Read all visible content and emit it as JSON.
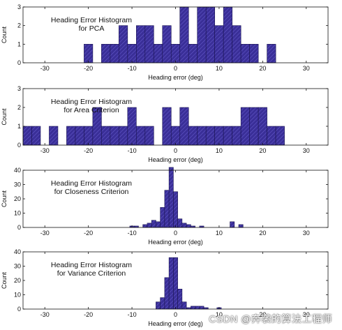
{
  "colors": {
    "bar_fill": "#3a2f98",
    "bar_stroke": "#1a1450",
    "axis": "#111111"
  },
  "watermark": "CSDN @奔袭的算法工程师",
  "chart_data": [
    {
      "type": "bar",
      "title": "Heading Error Histogram\nfor PCA",
      "xlabel": "Heading error (deg)",
      "ylabel": "Count",
      "xlim": [
        -35,
        35
      ],
      "ylim": [
        0,
        3
      ],
      "xticks": [
        -30,
        -20,
        -10,
        0,
        10,
        20,
        30
      ],
      "yticks": [
        0,
        1,
        2,
        3
      ],
      "bin_width": 2,
      "x": [
        -20,
        -18,
        -16,
        -14,
        -12,
        -10,
        -8,
        -6,
        -4,
        -2,
        0,
        2,
        4,
        6,
        8,
        10,
        12,
        14,
        16,
        18,
        20,
        22
      ],
      "values": [
        1,
        0,
        1,
        1,
        2,
        1,
        2,
        2,
        1,
        2,
        1,
        3,
        1,
        3,
        3,
        2,
        3,
        2,
        1,
        1,
        0,
        1
      ]
    },
    {
      "type": "bar",
      "title": "Heading Error Histogram\nfor Area Criterion",
      "xlabel": "Heading error (deg)",
      "ylabel": "Count",
      "xlim": [
        -35,
        35
      ],
      "ylim": [
        0,
        3
      ],
      "xticks": [
        -30,
        -20,
        -10,
        0,
        10,
        20,
        30
      ],
      "yticks": [
        0,
        1,
        2,
        3
      ],
      "bin_width": 2,
      "x": [
        -34,
        -32,
        -28,
        -24,
        -22,
        -20,
        -18,
        -16,
        -14,
        -12,
        -10,
        -8,
        -6,
        -4,
        -2,
        0,
        2,
        4,
        6,
        8,
        10,
        12,
        14,
        16,
        18,
        20,
        22,
        24
      ],
      "values": [
        1,
        1,
        1,
        1,
        1,
        1,
        2,
        1,
        1,
        1,
        2,
        1,
        1,
        0,
        2,
        1,
        2,
        1,
        1,
        1,
        1,
        1,
        1,
        2,
        2,
        2,
        1,
        1
      ]
    },
    {
      "type": "bar",
      "title": "Heading Error Histogram\nfor Closeness Criterion",
      "xlabel": "Heading error (deg)",
      "ylabel": "Count",
      "xlim": [
        -35,
        35
      ],
      "ylim": [
        0,
        40
      ],
      "xticks": [
        -30,
        -20,
        -10,
        0,
        10,
        20,
        30
      ],
      "yticks": [
        0,
        10,
        20,
        30,
        40
      ],
      "bin_width": 1,
      "x": [
        -10,
        -9,
        -7,
        -6,
        -5,
        -4,
        -3,
        -2,
        -1,
        0,
        1,
        2,
        3,
        4,
        6,
        13,
        15
      ],
      "values": [
        1,
        1,
        2,
        3,
        5,
        4,
        14,
        26,
        42,
        25,
        6,
        3,
        2,
        1,
        1,
        4,
        2
      ]
    },
    {
      "type": "bar",
      "title": "Heading Error Histogram\nfor Variance Criterion",
      "xlabel": "Heading error (deg)",
      "ylabel": "Count",
      "xlim": [
        -35,
        35
      ],
      "ylim": [
        0,
        40
      ],
      "xticks": [
        -30,
        -20,
        -10,
        0,
        10,
        20,
        30
      ],
      "yticks": [
        0,
        10,
        20,
        30,
        40
      ],
      "bin_width": 1,
      "x": [
        -4,
        -3,
        -2,
        -1,
        0,
        1,
        2,
        3,
        4,
        5,
        6,
        7,
        10
      ],
      "values": [
        5,
        8,
        22,
        36,
        36,
        14,
        5,
        1,
        2,
        2,
        2,
        1,
        1
      ]
    }
  ]
}
